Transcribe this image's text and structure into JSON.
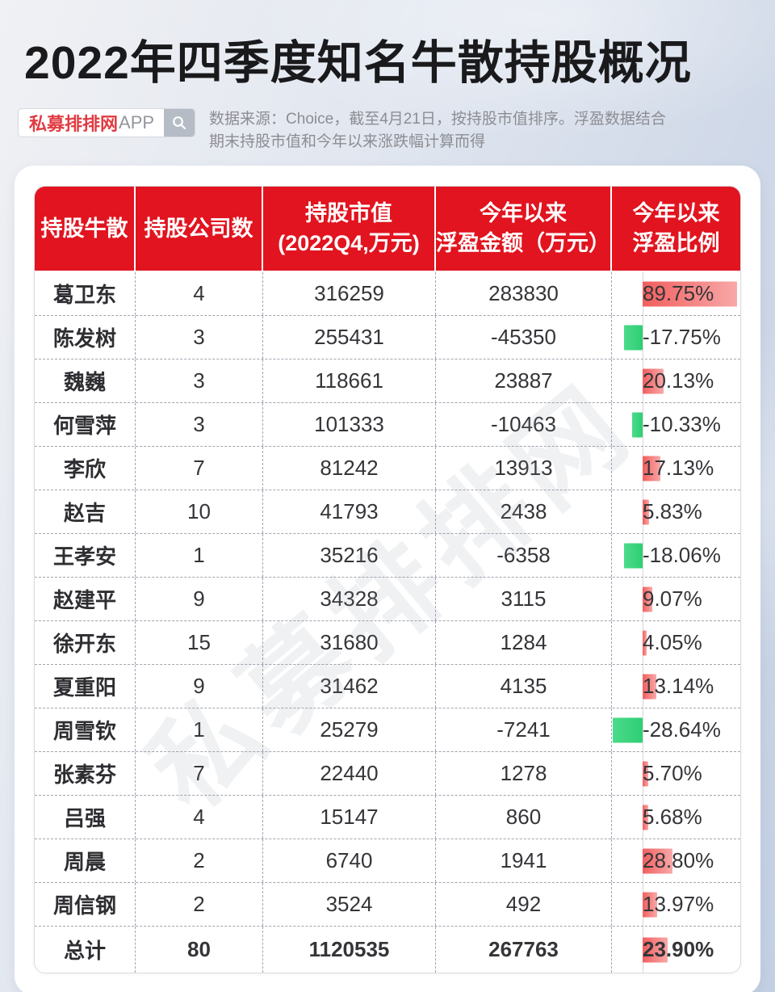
{
  "page": {
    "title": "2022年四季度知名牛散持股概况",
    "badge": {
      "brand": "私募排排网",
      "suffix": "APP"
    },
    "source_note": "数据来源：Choice，截至4月21日，按持股市值排序。浮盈数据结合期末持股市值和今年以来涨跌幅计算而得",
    "watermark": "私募排排网"
  },
  "colors": {
    "accent_red": "#e1141f",
    "brand_red": "#e03b42",
    "bar_red_start": "#f15f5e",
    "bar_red_end": "#f8a8a8",
    "bar_green_start": "#4bdb8b",
    "bar_green_end": "#2fce74",
    "suffix_gray": "#93969c"
  },
  "table": {
    "headers": [
      {
        "lines": [
          "持股牛散"
        ]
      },
      {
        "lines": [
          "持股公司数"
        ]
      },
      {
        "lines": [
          "持股市值",
          "(2022Q4,万元)"
        ]
      },
      {
        "lines": [
          "今年以来",
          "浮盈金额（万元）"
        ]
      },
      {
        "lines": [
          "今年以来",
          "浮盈比例"
        ]
      }
    ],
    "rows": [
      {
        "name": "葛卫东",
        "companies": "4",
        "market_value": "316259",
        "float_profit": "283830",
        "percent": 89.75,
        "percent_label": "89.75%"
      },
      {
        "name": "陈发树",
        "companies": "3",
        "market_value": "255431",
        "float_profit": "-45350",
        "percent": -17.75,
        "percent_label": "-17.75%"
      },
      {
        "name": "魏巍",
        "companies": "3",
        "market_value": "118661",
        "float_profit": "23887",
        "percent": 20.13,
        "percent_label": "20.13%"
      },
      {
        "name": "何雪萍",
        "companies": "3",
        "market_value": "101333",
        "float_profit": "-10463",
        "percent": -10.33,
        "percent_label": "-10.33%"
      },
      {
        "name": "李欣",
        "companies": "7",
        "market_value": "81242",
        "float_profit": "13913",
        "percent": 17.13,
        "percent_label": "17.13%"
      },
      {
        "name": "赵吉",
        "companies": "10",
        "market_value": "41793",
        "float_profit": "2438",
        "percent": 5.83,
        "percent_label": "5.83%"
      },
      {
        "name": "王孝安",
        "companies": "1",
        "market_value": "35216",
        "float_profit": "-6358",
        "percent": -18.06,
        "percent_label": "-18.06%"
      },
      {
        "name": "赵建平",
        "companies": "9",
        "market_value": "34328",
        "float_profit": "3115",
        "percent": 9.07,
        "percent_label": "9.07%"
      },
      {
        "name": "徐开东",
        "companies": "15",
        "market_value": "31680",
        "float_profit": "1284",
        "percent": 4.05,
        "percent_label": "4.05%"
      },
      {
        "name": "夏重阳",
        "companies": "9",
        "market_value": "31462",
        "float_profit": "4135",
        "percent": 13.14,
        "percent_label": "13.14%"
      },
      {
        "name": "周雪钦",
        "companies": "1",
        "market_value": "25279",
        "float_profit": "-7241",
        "percent": -28.64,
        "percent_label": "-28.64%"
      },
      {
        "name": "张素芬",
        "companies": "7",
        "market_value": "22440",
        "float_profit": "1278",
        "percent": 5.7,
        "percent_label": "5.70%"
      },
      {
        "name": "吕强",
        "companies": "4",
        "market_value": "15147",
        "float_profit": "860",
        "percent": 5.68,
        "percent_label": "5.68%"
      },
      {
        "name": "周晨",
        "companies": "2",
        "market_value": "6740",
        "float_profit": "1941",
        "percent": 28.8,
        "percent_label": "28.80%"
      },
      {
        "name": "周信钢",
        "companies": "2",
        "market_value": "3524",
        "float_profit": "492",
        "percent": 13.97,
        "percent_label": "13.97%"
      },
      {
        "name": "总计",
        "companies": "80",
        "market_value": "1120535",
        "float_profit": "267763",
        "percent": 23.9,
        "percent_label": "23.90%",
        "total": true
      }
    ]
  },
  "chart_data": {
    "type": "table",
    "title": "2022年四季度知名牛散持股概况",
    "source": "数据来源：Choice，截至4月21日，按持股市值排序。浮盈数据结合期末持股市值和今年以来涨跌幅计算而得",
    "columns": [
      "持股牛散",
      "持股公司数",
      "持股市值(2022Q4,万元)",
      "今年以来浮盈金额（万元）",
      "今年以来浮盈比例"
    ],
    "rows": [
      [
        "葛卫东",
        4,
        316259,
        283830,
        "89.75%"
      ],
      [
        "陈发树",
        3,
        255431,
        -45350,
        "-17.75%"
      ],
      [
        "魏巍",
        3,
        118661,
        23887,
        "20.13%"
      ],
      [
        "何雪萍",
        3,
        101333,
        -10463,
        "-10.33%"
      ],
      [
        "李欣",
        7,
        81242,
        13913,
        "17.13%"
      ],
      [
        "赵吉",
        10,
        41793,
        2438,
        "5.83%"
      ],
      [
        "王孝安",
        1,
        35216,
        -6358,
        "-18.06%"
      ],
      [
        "赵建平",
        9,
        34328,
        3115,
        "9.07%"
      ],
      [
        "徐开东",
        15,
        31680,
        1284,
        "4.05%"
      ],
      [
        "夏重阳",
        9,
        31462,
        4135,
        "13.14%"
      ],
      [
        "周雪钦",
        1,
        25279,
        -7241,
        "-28.64%"
      ],
      [
        "张素芬",
        7,
        22440,
        1278,
        "5.70%"
      ],
      [
        "吕强",
        4,
        15147,
        860,
        "5.68%"
      ],
      [
        "周晨",
        2,
        6740,
        1941,
        "28.80%"
      ],
      [
        "周信钢",
        2,
        3524,
        492,
        "13.97%"
      ]
    ],
    "total_row": [
      "总计",
      80,
      1120535,
      267763,
      "23.90%"
    ],
    "bar_column": "今年以来浮盈比例",
    "bar_semantics": {
      "positive": "red bar extending right of baseline",
      "negative": "green bar extending left of baseline"
    }
  }
}
